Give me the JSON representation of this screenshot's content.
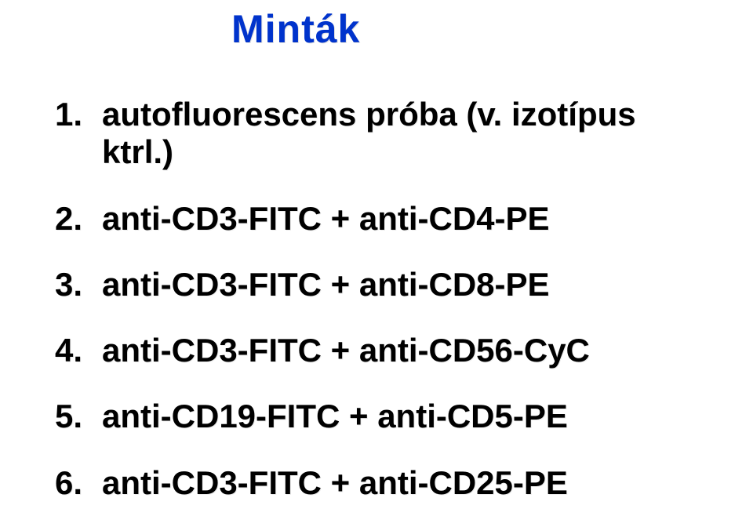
{
  "title": "Minták",
  "title_color": "#0033cc",
  "text_color": "#000000",
  "background_color": "#ffffff",
  "title_fontsize": 50,
  "item_fontsize": 42,
  "items": [
    {
      "num": "1.",
      "line1": "autofluorescens próba (v. izotípus",
      "line2": "ktrl.)"
    },
    {
      "num": "2.",
      "line1": "anti-CD3-FITC + anti-CD4-PE",
      "line2": ""
    },
    {
      "num": "3.",
      "line1": "anti-CD3-FITC + anti-CD8-PE",
      "line2": ""
    },
    {
      "num": "4.",
      "line1": "anti-CD3-FITC + anti-CD56-CyC",
      "line2": ""
    },
    {
      "num": "5.",
      "line1": "anti-CD19-FITC + anti-CD5-PE",
      "line2": ""
    },
    {
      "num": "6.",
      "line1": "anti-CD3-FITC + anti-CD25-PE",
      "line2": ""
    }
  ]
}
